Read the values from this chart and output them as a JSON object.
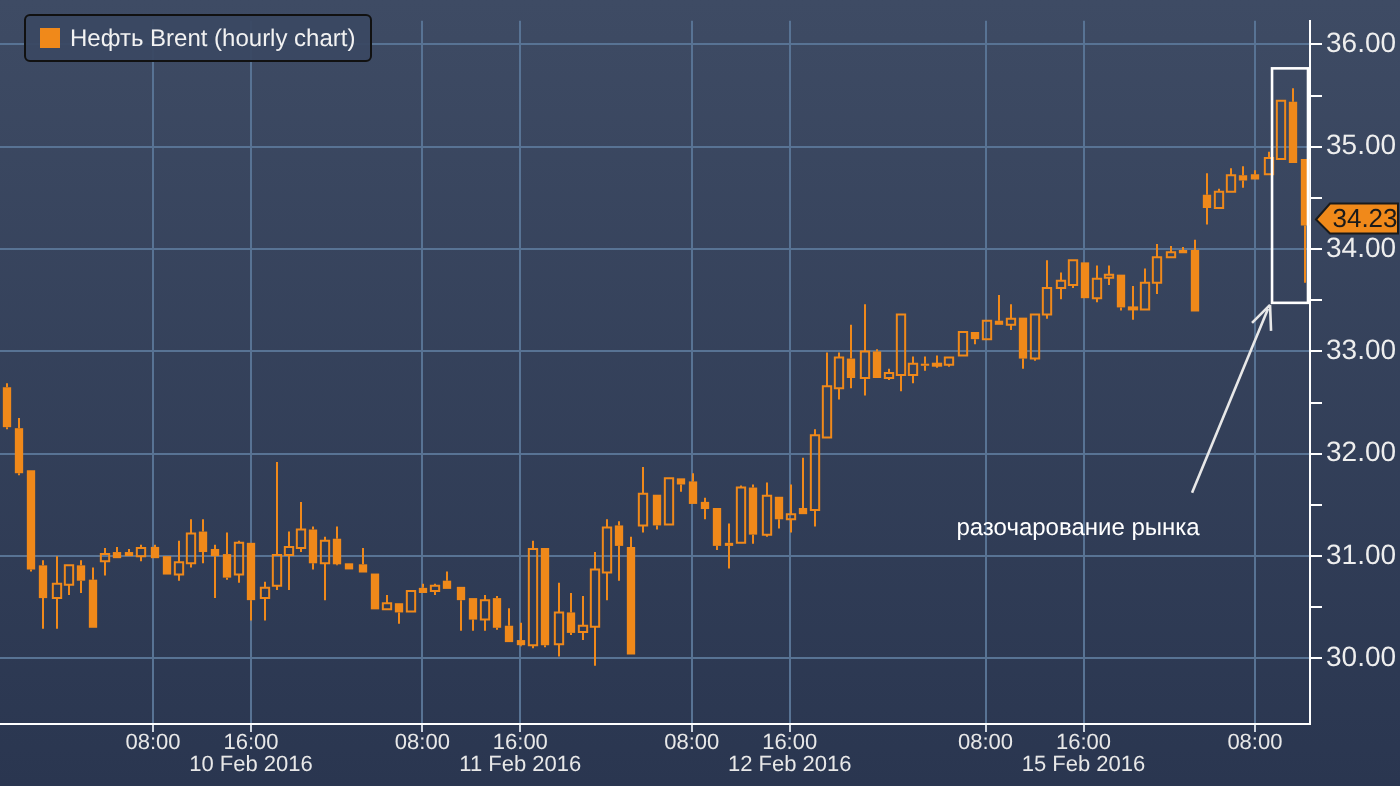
{
  "chart_data": {
    "type": "candlestick",
    "categories": [
      null,
      null,
      null,
      null,
      null,
      null,
      null,
      null,
      null,
      null,
      null,
      null,
      "08:00",
      null,
      null,
      null,
      null,
      null,
      null,
      null,
      "16:00\n10 Feb 2016",
      null,
      null,
      null,
      null,
      null,
      null,
      null,
      null,
      null,
      null,
      null,
      null,
      null,
      "08:00",
      null,
      null,
      null,
      null,
      null,
      null,
      null,
      "16:00\n11 Feb 2016",
      null,
      null,
      null,
      null,
      null,
      null,
      null,
      null,
      null,
      null,
      null,
      null,
      null,
      "08:00",
      null,
      null,
      null,
      null,
      null,
      null,
      null,
      "16:00\n12 Feb 2016",
      null,
      null,
      null,
      null,
      null,
      null,
      null,
      null,
      null,
      null,
      null,
      null,
      null,
      null,
      null,
      "08:00",
      null,
      null,
      null,
      null,
      null,
      null,
      null,
      "16:00\n15 Feb 2016",
      null,
      null,
      null,
      null,
      null,
      null,
      null,
      null,
      null,
      null,
      null,
      null,
      null,
      "08:00",
      null,
      null,
      null,
      null
    ],
    "series": [
      {
        "name": "Нефть Brent (hourly chart)",
        "color": "#f0891a",
        "ohlc": [
          [
            32.65,
            32.69,
            32.24,
            32.26
          ],
          [
            32.25,
            32.35,
            31.79,
            31.81
          ],
          [
            31.84,
            31.84,
            30.85,
            30.87
          ],
          [
            30.91,
            30.96,
            30.29,
            30.59
          ],
          [
            30.59,
            31.0,
            30.29,
            30.73
          ],
          [
            30.72,
            30.91,
            30.62,
            30.91
          ],
          [
            30.91,
            30.96,
            30.64,
            30.76
          ],
          [
            30.77,
            30.89,
            30.3,
            30.3
          ],
          [
            30.95,
            31.08,
            30.81,
            31.02
          ],
          [
            31.04,
            31.09,
            30.98,
            30.98
          ],
          [
            31.04,
            31.07,
            31.0,
            31.0
          ],
          [
            31.0,
            31.11,
            30.95,
            31.08
          ],
          [
            31.09,
            31.11,
            30.98,
            30.98
          ],
          [
            31.0,
            31.0,
            30.82,
            30.82
          ],
          [
            30.82,
            31.15,
            30.76,
            30.94
          ],
          [
            30.93,
            31.36,
            30.89,
            31.22
          ],
          [
            31.24,
            31.36,
            30.93,
            31.04
          ],
          [
            31.07,
            31.11,
            30.59,
            31.0
          ],
          [
            31.02,
            31.23,
            30.77,
            30.79
          ],
          [
            30.82,
            31.15,
            30.74,
            31.13
          ],
          [
            31.13,
            31.13,
            30.37,
            30.57
          ],
          [
            30.59,
            30.75,
            30.37,
            30.69
          ],
          [
            30.71,
            31.92,
            30.67,
            31.01
          ],
          [
            31.01,
            31.24,
            30.67,
            31.09
          ],
          [
            31.08,
            31.53,
            31.04,
            31.26
          ],
          [
            31.26,
            31.29,
            30.87,
            30.93
          ],
          [
            30.93,
            31.19,
            30.57,
            31.15
          ],
          [
            31.17,
            31.29,
            30.91,
            30.92
          ],
          [
            30.93,
            30.93,
            30.87,
            30.87
          ],
          [
            30.92,
            31.08,
            30.84,
            30.84
          ],
          [
            30.83,
            30.83,
            30.48,
            30.48
          ],
          [
            30.48,
            30.62,
            30.48,
            30.54
          ],
          [
            30.54,
            30.54,
            30.34,
            30.45
          ],
          [
            30.46,
            30.66,
            30.46,
            30.66
          ],
          [
            30.69,
            30.73,
            30.64,
            30.64
          ],
          [
            30.66,
            30.73,
            30.62,
            30.71
          ],
          [
            30.76,
            30.85,
            30.68,
            30.68
          ],
          [
            30.7,
            30.7,
            30.27,
            30.57
          ],
          [
            30.59,
            30.59,
            30.27,
            30.38
          ],
          [
            30.38,
            30.62,
            30.27,
            30.57
          ],
          [
            30.59,
            30.61,
            30.28,
            30.3
          ],
          [
            30.32,
            30.49,
            30.16,
            30.16
          ],
          [
            30.18,
            30.35,
            30.12,
            30.13
          ],
          [
            30.13,
            31.15,
            30.1,
            31.07
          ],
          [
            31.08,
            31.08,
            30.11,
            30.13
          ],
          [
            30.14,
            30.74,
            30.02,
            30.45
          ],
          [
            30.45,
            30.64,
            30.23,
            30.25
          ],
          [
            30.26,
            30.61,
            30.18,
            30.32
          ],
          [
            30.31,
            31.04,
            29.93,
            30.87
          ],
          [
            30.84,
            31.36,
            30.57,
            31.28
          ],
          [
            31.3,
            31.34,
            30.76,
            31.1
          ],
          [
            31.09,
            31.19,
            30.04,
            30.04
          ],
          [
            31.3,
            31.87,
            31.23,
            31.61
          ],
          [
            31.6,
            31.6,
            31.26,
            31.3
          ],
          [
            31.31,
            31.76,
            31.31,
            31.76
          ],
          [
            31.76,
            31.76,
            31.63,
            31.7
          ],
          [
            31.73,
            31.81,
            31.51,
            31.51
          ],
          [
            31.53,
            31.57,
            31.36,
            31.46
          ],
          [
            31.47,
            31.47,
            31.06,
            31.1
          ],
          [
            31.13,
            31.32,
            30.88,
            31.1
          ],
          [
            31.13,
            31.69,
            31.13,
            31.67
          ],
          [
            31.67,
            31.7,
            31.12,
            31.21
          ],
          [
            31.21,
            31.72,
            31.19,
            31.59
          ],
          [
            31.58,
            31.58,
            31.27,
            31.36
          ],
          [
            31.36,
            31.7,
            31.23,
            31.41
          ],
          [
            31.47,
            31.96,
            31.41,
            31.41
          ],
          [
            31.45,
            32.24,
            31.29,
            32.18
          ],
          [
            32.16,
            32.99,
            32.16,
            32.66
          ],
          [
            32.64,
            32.99,
            32.53,
            32.94
          ],
          [
            32.93,
            33.26,
            32.64,
            32.74
          ],
          [
            32.74,
            33.46,
            32.57,
            33.0
          ],
          [
            33.0,
            33.02,
            32.74,
            32.74
          ],
          [
            32.74,
            32.83,
            32.72,
            32.79
          ],
          [
            32.77,
            33.36,
            32.61,
            33.36
          ],
          [
            32.77,
            32.95,
            32.69,
            32.88
          ],
          [
            32.88,
            32.95,
            32.81,
            32.86
          ],
          [
            32.88,
            32.96,
            32.84,
            32.88
          ],
          [
            32.87,
            32.94,
            32.85,
            32.94
          ],
          [
            32.96,
            33.19,
            32.96,
            33.19
          ],
          [
            33.19,
            33.19,
            33.07,
            33.12
          ],
          [
            33.12,
            33.3,
            33.12,
            33.3
          ],
          [
            33.3,
            33.55,
            33.26,
            33.26
          ],
          [
            33.26,
            33.46,
            33.21,
            33.32
          ],
          [
            33.33,
            33.33,
            32.83,
            32.93
          ],
          [
            32.93,
            33.36,
            32.91,
            33.36
          ],
          [
            33.36,
            33.89,
            33.32,
            33.62
          ],
          [
            33.62,
            33.77,
            33.51,
            33.69
          ],
          [
            33.65,
            33.89,
            33.62,
            33.89
          ],
          [
            33.87,
            33.87,
            33.52,
            33.52
          ],
          [
            33.52,
            33.84,
            33.48,
            33.71
          ],
          [
            33.72,
            33.84,
            33.65,
            33.75
          ],
          [
            33.75,
            33.75,
            33.4,
            33.43
          ],
          [
            33.43,
            33.64,
            33.31,
            33.43
          ],
          [
            33.41,
            33.81,
            33.41,
            33.67
          ],
          [
            33.67,
            34.05,
            33.56,
            33.92
          ],
          [
            33.92,
            34.03,
            33.92,
            33.97
          ],
          [
            33.99,
            34.02,
            33.96,
            33.96
          ],
          [
            33.99,
            34.09,
            33.39,
            33.39
          ],
          [
            34.53,
            34.74,
            34.24,
            34.4
          ],
          [
            34.4,
            34.59,
            34.4,
            34.56
          ],
          [
            34.56,
            34.79,
            34.56,
            34.72
          ],
          [
            34.72,
            34.81,
            34.6,
            34.67
          ],
          [
            34.73,
            34.77,
            34.68,
            34.68
          ],
          [
            34.73,
            34.95,
            34.73,
            34.89
          ],
          [
            34.88,
            35.45,
            34.88,
            35.45
          ],
          [
            35.44,
            35.57,
            34.84,
            34.84
          ],
          [
            34.88,
            34.88,
            33.67,
            34.23
          ]
        ]
      }
    ],
    "ylim": [
      29.36,
      36.23
    ],
    "yticks": [
      {
        "value": 30,
        "label": "30.00"
      },
      {
        "value": 30.5,
        "label": null
      },
      {
        "value": 31,
        "label": "31.00"
      },
      {
        "value": 31.5,
        "label": null
      },
      {
        "value": 32,
        "label": "32.00"
      },
      {
        "value": 32.5,
        "label": null
      },
      {
        "value": 33,
        "label": "33.00"
      },
      {
        "value": 33.5,
        "label": null
      },
      {
        "value": 34,
        "label": "34.00"
      },
      {
        "value": 34.5,
        "label": null
      },
      {
        "value": 35,
        "label": "35.00"
      },
      {
        "value": 35.5,
        "label": null
      },
      {
        "value": 36,
        "label": "36.00"
      }
    ],
    "annotations": [
      "34.23",
      "разочарование рынка"
    ],
    "grid": true,
    "legend": "top left"
  }
}
